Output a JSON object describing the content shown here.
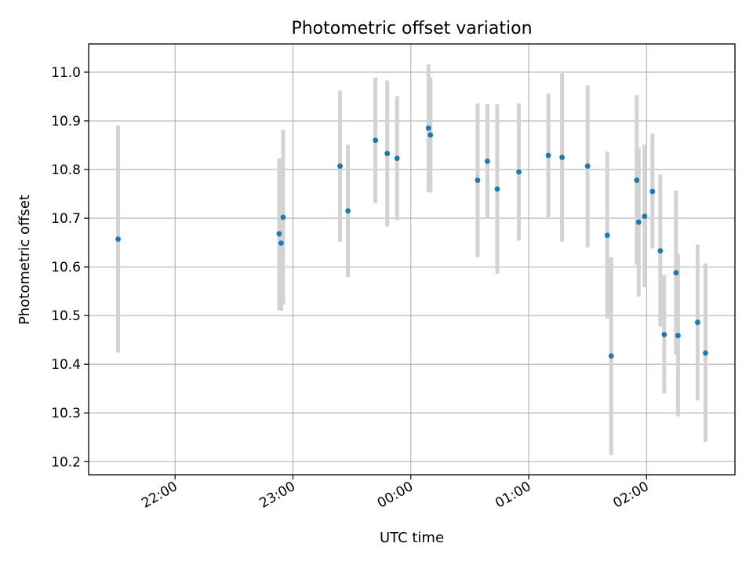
{
  "chart_data": {
    "type": "scatter",
    "title": "Photometric offset variation",
    "xlabel": "UTC time",
    "ylabel": "Photometric offset",
    "x_unit": "UTC time (HH:MM)",
    "xlim": [
      "21:16",
      "02:45"
    ],
    "ylim": [
      10.173,
      11.058
    ],
    "xticks": [
      "22:00",
      "23:00",
      "00:00",
      "01:00",
      "02:00"
    ],
    "yticks": [
      "10.2",
      "10.3",
      "10.4",
      "10.5",
      "10.6",
      "10.7",
      "10.8",
      "10.9",
      "11.0"
    ],
    "grid": true,
    "marker_color": "#1f77b4",
    "errorbar_color": "#d3d3d3",
    "series": [
      {
        "points": [
          {
            "x": "21:31",
            "y": 10.657,
            "ylow": 10.424,
            "yhigh": 10.89
          },
          {
            "x": "22:53",
            "y": 10.668,
            "ylow": 10.512,
            "yhigh": 10.823
          },
          {
            "x": "22:54",
            "y": 10.649,
            "ylow": 10.51,
            "yhigh": 10.788
          },
          {
            "x": "22:55",
            "y": 10.702,
            "ylow": 10.522,
            "yhigh": 10.882
          },
          {
            "x": "23:24",
            "y": 10.807,
            "ylow": 10.652,
            "yhigh": 10.962
          },
          {
            "x": "23:28",
            "y": 10.715,
            "ylow": 10.579,
            "yhigh": 10.851
          },
          {
            "x": "23:42",
            "y": 10.86,
            "ylow": 10.731,
            "yhigh": 10.989
          },
          {
            "x": "23:48",
            "y": 10.833,
            "ylow": 10.683,
            "yhigh": 10.983
          },
          {
            "x": "23:53",
            "y": 10.823,
            "ylow": 10.696,
            "yhigh": 10.951
          },
          {
            "x": "00:09",
            "y": 10.885,
            "ylow": 10.754,
            "yhigh": 11.016
          },
          {
            "x": "00:10",
            "y": 10.871,
            "ylow": 10.753,
            "yhigh": 10.989
          },
          {
            "x": "00:34",
            "y": 10.778,
            "ylow": 10.62,
            "yhigh": 10.936
          },
          {
            "x": "00:39",
            "y": 10.817,
            "ylow": 10.699,
            "yhigh": 10.934
          },
          {
            "x": "00:44",
            "y": 10.76,
            "ylow": 10.586,
            "yhigh": 10.934
          },
          {
            "x": "00:55",
            "y": 10.795,
            "ylow": 10.654,
            "yhigh": 10.936
          },
          {
            "x": "01:10",
            "y": 10.829,
            "ylow": 10.702,
            "yhigh": 10.956
          },
          {
            "x": "01:17",
            "y": 10.825,
            "ylow": 10.652,
            "yhigh": 10.998
          },
          {
            "x": "01:30",
            "y": 10.807,
            "ylow": 10.64,
            "yhigh": 10.973
          },
          {
            "x": "01:40",
            "y": 10.665,
            "ylow": 10.494,
            "yhigh": 10.837
          },
          {
            "x": "01:42",
            "y": 10.417,
            "ylow": 10.213,
            "yhigh": 10.62
          },
          {
            "x": "01:55",
            "y": 10.778,
            "ylow": 10.604,
            "yhigh": 10.953
          },
          {
            "x": "01:56",
            "y": 10.692,
            "ylow": 10.539,
            "yhigh": 10.845
          },
          {
            "x": "01:59",
            "y": 10.704,
            "ylow": 10.558,
            "yhigh": 10.851
          },
          {
            "x": "02:03",
            "y": 10.755,
            "ylow": 10.638,
            "yhigh": 10.874
          },
          {
            "x": "02:07",
            "y": 10.633,
            "ylow": 10.477,
            "yhigh": 10.79
          },
          {
            "x": "02:09",
            "y": 10.461,
            "ylow": 10.34,
            "yhigh": 10.583
          },
          {
            "x": "02:15",
            "y": 10.588,
            "ylow": 10.42,
            "yhigh": 10.757
          },
          {
            "x": "02:16",
            "y": 10.459,
            "ylow": 10.293,
            "yhigh": 10.627
          },
          {
            "x": "02:26",
            "y": 10.486,
            "ylow": 10.326,
            "yhigh": 10.646
          },
          {
            "x": "02:30",
            "y": 10.423,
            "ylow": 10.24,
            "yhigh": 10.607
          }
        ]
      }
    ]
  }
}
